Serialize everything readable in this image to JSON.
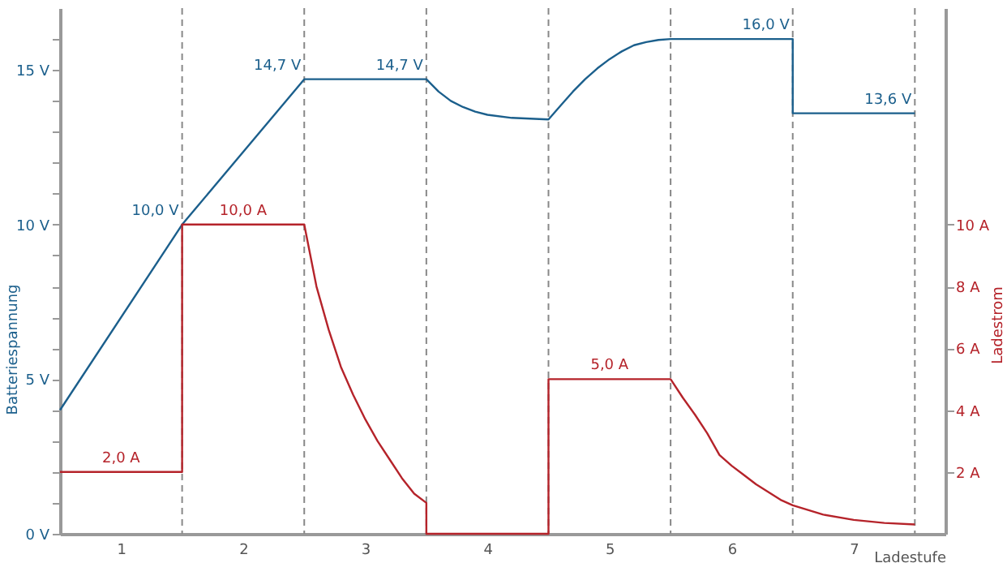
{
  "chart_data": {
    "type": "line",
    "ylabel": "Batteriespannung",
    "y2label": "Ladestrom",
    "xlabel": "Ladestufe",
    "xlim": [
      0.5,
      7.75
    ],
    "xticks": [
      1,
      2,
      3,
      4,
      5,
      6,
      7
    ],
    "ylim": [
      0,
      17
    ],
    "yticks": [
      {
        "value": 0,
        "label": "0 V"
      },
      {
        "value": 1,
        "label": null
      },
      {
        "value": 2,
        "label": null
      },
      {
        "value": 3,
        "label": null
      },
      {
        "value": 4,
        "label": null
      },
      {
        "value": 5,
        "label": "5 V"
      },
      {
        "value": 6,
        "label": null
      },
      {
        "value": 7,
        "label": null
      },
      {
        "value": 8,
        "label": null
      },
      {
        "value": 9,
        "label": null
      },
      {
        "value": 10,
        "label": "10 V"
      },
      {
        "value": 11,
        "label": null
      },
      {
        "value": 12,
        "label": null
      },
      {
        "value": 13,
        "label": null
      },
      {
        "value": 14,
        "label": null
      },
      {
        "value": 15,
        "label": "15 V"
      },
      {
        "value": 16,
        "label": null
      }
    ],
    "y2lim": [
      0,
      17
    ],
    "y2ticks": [
      {
        "value": 2,
        "label": "2 A"
      },
      {
        "value": 4,
        "label": "4 A"
      },
      {
        "value": 6,
        "label": "6 A"
      },
      {
        "value": 8,
        "label": "8 A"
      },
      {
        "value": 10,
        "label": "10 A"
      }
    ],
    "grid": false,
    "marker": "none",
    "line_style": "solid",
    "series": [
      {
        "color": "#1b5f8c",
        "x": [
          0.5,
          1.5,
          2.5,
          3.5,
          3.6,
          3.7,
          3.8,
          3.9,
          4.0,
          4.2,
          4.5,
          4.6,
          4.7,
          4.8,
          4.9,
          5.0,
          5.1,
          5.2,
          5.3,
          5.4,
          5.5,
          6.5,
          6.5,
          7.5
        ],
        "values": [
          4.0,
          10.0,
          14.7,
          14.7,
          14.3,
          14.0,
          13.8,
          13.65,
          13.55,
          13.45,
          13.4,
          13.85,
          14.3,
          14.7,
          15.05,
          15.35,
          15.6,
          15.8,
          15.9,
          15.97,
          16.0,
          16.0,
          13.6,
          13.6
        ]
      },
      {
        "axis": "y2",
        "color": "#b5232a",
        "x": [
          0.5,
          1.5,
          1.5,
          2.5,
          2.6,
          2.7,
          2.8,
          2.9,
          3.0,
          3.1,
          3.2,
          3.3,
          3.4,
          3.5,
          3.5,
          4.5,
          4.5,
          5.5,
          5.6,
          5.7,
          5.8,
          5.9,
          6.0,
          6.1,
          6.2,
          6.4,
          6.5,
          6.75,
          7.0,
          7.25,
          7.5
        ],
        "values": [
          2.0,
          2.0,
          10.0,
          10.0,
          8.0,
          6.6,
          5.4,
          4.5,
          3.7,
          3.0,
          2.4,
          1.8,
          1.3,
          1.0,
          0,
          0,
          5.0,
          5.0,
          4.4,
          3.85,
          3.25,
          2.55,
          2.2,
          1.9,
          1.6,
          1.1,
          0.92,
          0.62,
          0.45,
          0.35,
          0.3
        ]
      }
    ],
    "ref_lines": [
      {
        "axis": "x",
        "value": 1.5,
        "color": "#888888",
        "line_style": "dashed"
      },
      {
        "axis": "x",
        "value": 2.5,
        "color": "#888888",
        "line_style": "dashed"
      },
      {
        "axis": "x",
        "value": 3.5,
        "color": "#888888",
        "line_style": "dashed"
      },
      {
        "axis": "x",
        "value": 4.5,
        "color": "#888888",
        "line_style": "dashed"
      },
      {
        "axis": "x",
        "value": 5.5,
        "color": "#888888",
        "line_style": "dashed"
      },
      {
        "axis": "x",
        "value": 6.5,
        "color": "#888888",
        "line_style": "dashed"
      },
      {
        "axis": "x",
        "value": 7.5,
        "color": "#888888",
        "line_style": "dashed"
      }
    ],
    "annotations": [
      {
        "text": "2,0 A",
        "x": 1,
        "y": 2.0
      },
      {
        "text": "10,0 V",
        "x": 1.5,
        "y": 10.0
      },
      {
        "text": "10,0 A",
        "x": 2,
        "y": 10.0
      },
      {
        "text": "14,7 V",
        "x": 2.5,
        "y": 14.7
      },
      {
        "text": "14,7 V",
        "x": 3.5,
        "y": 14.7
      },
      {
        "text": "5,0 A",
        "x": 5,
        "y": 5.0
      },
      {
        "text": "16,0 V",
        "x": 6.5,
        "y": 16.0
      },
      {
        "text": "13,6 V",
        "x": 7.5,
        "y": 13.6
      }
    ]
  }
}
